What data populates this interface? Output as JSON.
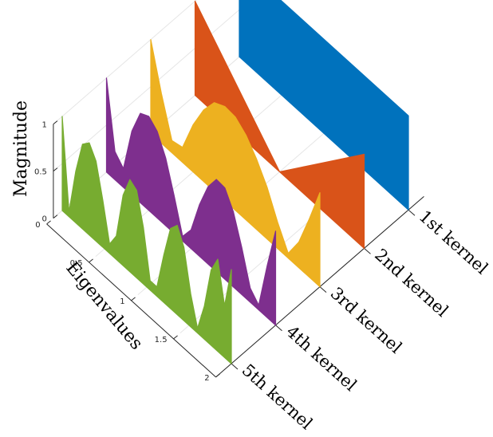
{
  "chart_data": {
    "type": "area",
    "title": "",
    "xlabel": "Eigenvalues",
    "ylabel": "",
    "zlabel": "Magnitude",
    "xlim": [
      0,
      2
    ],
    "zlim": [
      0,
      1
    ],
    "x_ticks": [
      "0",
      "0.5",
      "1",
      "1.5",
      "2"
    ],
    "z_ticks": [
      "0",
      "0.5",
      "1"
    ],
    "categories": [
      "1st kernel",
      "2nd kernel",
      "3rd kernel",
      "4th kernel",
      "5th kernel"
    ],
    "grid": true,
    "series": [
      {
        "name": "1st kernel",
        "color": "#0072BD",
        "x": [
          0,
          0.25,
          0.5,
          0.75,
          1,
          1.25,
          1.5,
          1.75,
          2
        ],
        "values": [
          1,
          1,
          1,
          1,
          1,
          1,
          1,
          1,
          1
        ]
      },
      {
        "name": "2nd kernel",
        "color": "#D95319",
        "x": [
          0,
          0.25,
          0.5,
          0.75,
          1,
          1.25,
          1.5,
          1.75,
          2
        ],
        "values": [
          1,
          0.75,
          0.5,
          0.25,
          0,
          0.25,
          0.5,
          0.75,
          1
        ]
      },
      {
        "name": "3rd kernel",
        "color": "#EDB120",
        "x": [
          0,
          0.125,
          0.25,
          0.375,
          0.5,
          0.625,
          0.75,
          0.875,
          1,
          1.125,
          1.25,
          1.375,
          1.5,
          1.625,
          1.75,
          1.875,
          2
        ],
        "values": [
          1,
          0.53,
          0.13,
          0.16,
          0.5,
          0.76,
          0.94,
          1.0,
          0.99,
          0.9,
          0.75,
          0.55,
          0.28,
          0.05,
          0.27,
          0.62,
          1
        ]
      },
      {
        "name": "4th kernel",
        "color": "#7E2F8E",
        "x": [
          0,
          0.1,
          0.2,
          0.3,
          0.4,
          0.5,
          0.6,
          0.7,
          0.8,
          0.9,
          1,
          1.1,
          1.2,
          1.3,
          1.4,
          1.5,
          1.6,
          1.7,
          1.8,
          1.9,
          2
        ],
        "values": [
          1,
          0.3,
          0.2,
          0.68,
          0.95,
          1.0,
          0.92,
          0.72,
          0.4,
          0.05,
          0.2,
          0.55,
          0.82,
          0.98,
          0.97,
          0.8,
          0.5,
          0.15,
          0.05,
          0.55,
          1
        ]
      },
      {
        "name": "5th kernel",
        "color": "#77AC30",
        "x": [
          0,
          0.08,
          0.16,
          0.24,
          0.32,
          0.4,
          0.48,
          0.56,
          0.64,
          0.72,
          0.8,
          0.88,
          0.96,
          1.04,
          1.12,
          1.2,
          1.28,
          1.36,
          1.44,
          1.52,
          1.6,
          1.68,
          1.76,
          1.84,
          1.92,
          2
        ],
        "values": [
          1,
          0.05,
          0.55,
          0.9,
          0.98,
          0.85,
          0.5,
          0.1,
          0.25,
          0.75,
          0.98,
          0.93,
          0.6,
          0.1,
          0.1,
          0.5,
          0.85,
          0.95,
          0.78,
          0.35,
          0.05,
          0.35,
          0.8,
          0.98,
          0.55,
          1
        ]
      }
    ]
  }
}
